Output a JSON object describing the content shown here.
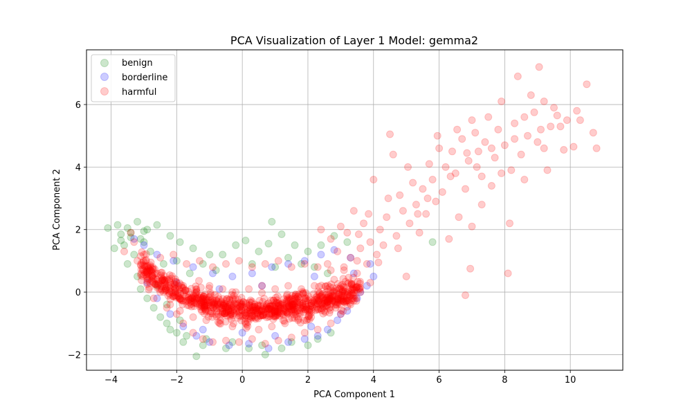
{
  "chart_data": {
    "type": "scatter",
    "title": "PCA Visualization of Layer 1 Model: gemma2",
    "xlabel": "PCA Component 1",
    "ylabel": "PCA Component 2",
    "xlim": [
      -4.75,
      11.6
    ],
    "ylim": [
      -2.5,
      7.75
    ],
    "xticks": [
      -4,
      -2,
      0,
      2,
      4,
      6,
      8,
      10
    ],
    "xtick_labels": [
      "−4",
      "−2",
      "0",
      "2",
      "4",
      "6",
      "8",
      "10"
    ],
    "yticks": [
      -2,
      0,
      2,
      4,
      6
    ],
    "ytick_labels": [
      "−2",
      "0",
      "2",
      "4",
      "6"
    ],
    "grid": true,
    "legend_position": "top-left",
    "series": [
      {
        "name": "benign",
        "color": "#008000",
        "opacity": 0.2,
        "points": [
          [
            -4.1,
            2.05
          ],
          [
            -3.8,
            2.15
          ],
          [
            -3.7,
            1.85
          ],
          [
            -3.5,
            2.05
          ],
          [
            -3.4,
            1.75
          ],
          [
            -3.2,
            2.25
          ],
          [
            -3.0,
            1.95
          ],
          [
            -3.6,
            1.5
          ],
          [
            -3.3,
            1.2
          ],
          [
            -3.5,
            0.9
          ],
          [
            -3.2,
            0.5
          ],
          [
            -3.1,
            0.1
          ],
          [
            -2.9,
            -0.2
          ],
          [
            -2.7,
            -0.5
          ],
          [
            -2.5,
            -0.8
          ],
          [
            -2.3,
            -1.0
          ],
          [
            -2.0,
            -1.3
          ],
          [
            -1.8,
            -1.6
          ],
          [
            -1.4,
            -2.05
          ],
          [
            -1.2,
            -1.7
          ],
          [
            -0.5,
            -1.8
          ],
          [
            0.2,
            -1.8
          ],
          [
            0.7,
            -2.0
          ],
          [
            1.5,
            -1.6
          ],
          [
            2.3,
            -1.5
          ],
          [
            -2.6,
            2.15
          ],
          [
            -2.2,
            1.8
          ],
          [
            -1.9,
            1.6
          ],
          [
            -1.5,
            1.4
          ],
          [
            -1.0,
            1.2
          ],
          [
            -0.6,
            1.2
          ],
          [
            -0.2,
            1.5
          ],
          [
            0.1,
            1.65
          ],
          [
            0.5,
            1.3
          ],
          [
            0.8,
            1.55
          ],
          [
            0.9,
            2.25
          ],
          [
            1.2,
            1.85
          ],
          [
            1.6,
            1.5
          ],
          [
            2.0,
            1.3
          ],
          [
            2.4,
            1.5
          ],
          [
            2.8,
            1.8
          ],
          [
            3.2,
            1.6
          ],
          [
            5.8,
            1.6
          ],
          [
            -3.0,
            1.6
          ],
          [
            -2.8,
            1.3
          ],
          [
            -2.4,
            0.9
          ],
          [
            -2.0,
            1.0
          ],
          [
            -1.6,
            0.6
          ],
          [
            -1.2,
            0.9
          ],
          [
            -0.8,
            0.7
          ],
          [
            0.3,
            0.9
          ],
          [
            1.0,
            0.8
          ],
          [
            1.4,
            1.1
          ],
          [
            1.8,
            0.9
          ],
          [
            2.2,
            0.8
          ],
          [
            2.6,
            0.6
          ],
          [
            -3.4,
            1.9
          ],
          [
            -3.1,
            1.7
          ],
          [
            -2.9,
            2.0
          ],
          [
            -3.7,
            1.65
          ],
          [
            -3.9,
            1.4
          ],
          [
            -2.6,
            0.2
          ],
          [
            -2.3,
            -0.4
          ],
          [
            -1.9,
            -0.9
          ],
          [
            -2.2,
            -1.2
          ],
          [
            -1.7,
            -1.4
          ],
          [
            -1.1,
            -1.5
          ],
          [
            -0.3,
            -1.6
          ],
          [
            0.6,
            -1.7
          ],
          [
            1.2,
            -1.8
          ],
          [
            2.0,
            -1.7
          ],
          [
            2.7,
            -1.3
          ]
        ]
      },
      {
        "name": "borderline",
        "color": "#0000ff",
        "opacity": 0.2,
        "points": [
          [
            -2.9,
            0.3
          ],
          [
            -2.6,
            -0.2
          ],
          [
            -2.2,
            -0.7
          ],
          [
            -1.8,
            -1.1
          ],
          [
            -1.4,
            -1.4
          ],
          [
            -1.0,
            -1.6
          ],
          [
            -0.4,
            -1.7
          ],
          [
            0.2,
            -1.65
          ],
          [
            0.8,
            -1.8
          ],
          [
            1.4,
            -1.6
          ],
          [
            1.9,
            -1.5
          ],
          [
            2.3,
            -1.4
          ],
          [
            2.6,
            -1.2
          ],
          [
            2.9,
            -0.9
          ],
          [
            3.2,
            -0.6
          ],
          [
            3.5,
            -0.2
          ],
          [
            3.8,
            0.2
          ],
          [
            4.0,
            0.5
          ],
          [
            3.9,
            0.9
          ],
          [
            3.3,
            1.1
          ],
          [
            2.8,
            1.35
          ],
          [
            2.4,
            1.2
          ],
          [
            1.9,
            1.0
          ],
          [
            1.4,
            0.9
          ],
          [
            0.9,
            0.8
          ],
          [
            0.3,
            0.6
          ],
          [
            -0.3,
            0.5
          ],
          [
            -0.9,
            0.6
          ],
          [
            -1.5,
            0.8
          ],
          [
            -2.1,
            1.0
          ],
          [
            -2.6,
            1.2
          ],
          [
            -3.0,
            1.5
          ],
          [
            -3.3,
            1.7
          ],
          [
            -1.2,
            -1.2
          ],
          [
            0.0,
            -1.3
          ],
          [
            1.0,
            -1.4
          ],
          [
            2.1,
            -1.1
          ],
          [
            3.0,
            -0.7
          ],
          [
            3.6,
            0.0
          ],
          [
            3.4,
            0.6
          ],
          [
            2.2,
            0.5
          ],
          [
            0.6,
            0.2
          ],
          [
            -0.7,
            0.1
          ],
          [
            -2.0,
            0.3
          ]
        ]
      },
      {
        "name": "harmful",
        "color": "#ff0000",
        "opacity": 0.2,
        "points": [
          [
            10.5,
            6.65
          ],
          [
            10.8,
            4.6
          ],
          [
            10.7,
            5.1
          ],
          [
            10.2,
            5.8
          ],
          [
            10.1,
            4.65
          ],
          [
            9.9,
            5.5
          ],
          [
            9.8,
            4.55
          ],
          [
            9.6,
            5.65
          ],
          [
            9.5,
            5.9
          ],
          [
            9.4,
            5.3
          ],
          [
            9.3,
            3.9
          ],
          [
            9.2,
            6.1
          ],
          [
            9.1,
            5.2
          ],
          [
            9.05,
            7.2
          ],
          [
            9.0,
            4.8
          ],
          [
            8.9,
            5.75
          ],
          [
            8.8,
            6.3
          ],
          [
            8.7,
            5.0
          ],
          [
            8.6,
            3.6
          ],
          [
            8.5,
            4.4
          ],
          [
            8.4,
            6.9
          ],
          [
            8.3,
            5.4
          ],
          [
            8.2,
            3.9
          ],
          [
            8.15,
            2.2
          ],
          [
            8.1,
            0.6
          ],
          [
            8.0,
            4.7
          ],
          [
            7.9,
            6.1
          ],
          [
            7.8,
            5.2
          ],
          [
            7.7,
            4.3
          ],
          [
            7.6,
            3.4
          ],
          [
            7.5,
            5.6
          ],
          [
            7.4,
            4.8
          ],
          [
            7.3,
            3.7
          ],
          [
            7.2,
            4.5
          ],
          [
            7.1,
            5.1
          ],
          [
            7.0,
            2.1
          ],
          [
            6.9,
            4.2
          ],
          [
            6.8,
            3.3
          ],
          [
            6.7,
            4.9
          ],
          [
            6.6,
            2.4
          ],
          [
            6.5,
            3.8
          ],
          [
            6.4,
            4.5
          ],
          [
            6.3,
            1.7
          ],
          [
            6.2,
            4.0
          ],
          [
            6.1,
            3.2
          ],
          [
            6.0,
            4.6
          ],
          [
            5.9,
            2.9
          ],
          [
            5.8,
            3.6
          ],
          [
            5.7,
            4.1
          ],
          [
            5.6,
            2.5
          ],
          [
            5.5,
            3.3
          ],
          [
            5.4,
            1.9
          ],
          [
            5.3,
            2.8
          ],
          [
            5.2,
            3.5
          ],
          [
            5.1,
            2.2
          ],
          [
            5.0,
            0.5
          ],
          [
            4.9,
            2.6
          ],
          [
            4.8,
            3.1
          ],
          [
            4.7,
            1.8
          ],
          [
            4.6,
            4.4
          ],
          [
            4.5,
            5.05
          ],
          [
            4.4,
            2.4
          ],
          [
            4.3,
            1.5
          ],
          [
            4.2,
            2.0
          ],
          [
            4.1,
            1.2
          ],
          [
            4.0,
            3.6
          ],
          [
            3.9,
            1.6
          ],
          [
            3.8,
            0.9
          ],
          [
            3.7,
            2.2
          ],
          [
            3.6,
            1.4
          ],
          [
            3.5,
            0.6
          ],
          [
            3.4,
            2.6
          ],
          [
            3.3,
            1.1
          ],
          [
            3.2,
            1.9
          ],
          [
            3.1,
            0.7
          ],
          [
            3.0,
            2.1
          ],
          [
            2.9,
            1.3
          ],
          [
            2.8,
            0.4
          ],
          [
            2.7,
            1.7
          ],
          [
            2.4,
            2.0
          ],
          [
            2.6,
            0.9
          ],
          [
            6.8,
            -0.1
          ],
          [
            6.95,
            0.75
          ],
          [
            7.3,
            2.8
          ],
          [
            7.6,
            4.6
          ],
          [
            7.9,
            3.8
          ],
          [
            8.3,
            4.9
          ],
          [
            8.6,
            5.6
          ],
          [
            9.2,
            4.6
          ],
          [
            9.7,
            5.3
          ],
          [
            10.3,
            5.5
          ],
          [
            7.0,
            5.5
          ],
          [
            7.15,
            4.0
          ],
          [
            6.85,
            4.45
          ],
          [
            6.55,
            5.2
          ],
          [
            6.35,
            3.7
          ],
          [
            5.95,
            5.0
          ],
          [
            5.65,
            3.0
          ],
          [
            5.35,
            2.5
          ],
          [
            5.05,
            4.0
          ],
          [
            4.75,
            1.4
          ],
          [
            4.45,
            3.0
          ],
          [
            4.15,
            0.95
          ],
          [
            3.85,
            2.5
          ],
          [
            3.55,
            1.85
          ],
          [
            3.25,
            0.3
          ],
          [
            -3.3,
            1.6
          ],
          [
            -3.0,
            1.2
          ],
          [
            -2.8,
            0.8
          ],
          [
            -2.6,
            0.4
          ],
          [
            -2.4,
            0.0
          ],
          [
            -2.2,
            -0.4
          ],
          [
            -2.0,
            -0.7
          ],
          [
            -1.8,
            -1.0
          ],
          [
            -1.5,
            -1.3
          ],
          [
            -1.2,
            -1.5
          ],
          [
            -0.9,
            -1.6
          ],
          [
            -0.5,
            -1.55
          ],
          [
            -0.1,
            -1.6
          ],
          [
            0.3,
            -1.5
          ],
          [
            0.7,
            -1.65
          ],
          [
            1.1,
            -1.55
          ],
          [
            1.5,
            -1.45
          ],
          [
            1.9,
            -1.3
          ],
          [
            2.3,
            -1.2
          ],
          [
            2.7,
            -1.0
          ],
          [
            3.0,
            -0.7
          ],
          [
            3.3,
            -0.4
          ],
          [
            3.6,
            0.0
          ],
          [
            3.9,
            0.3
          ],
          [
            -3.4,
            1.9
          ],
          [
            -3.6,
            1.3
          ],
          [
            -3.2,
            1.0
          ],
          [
            -2.9,
            0.6
          ],
          [
            -2.5,
            1.1
          ],
          [
            -2.1,
            1.2
          ],
          [
            -1.7,
            0.9
          ],
          [
            -1.3,
            1.0
          ],
          [
            -0.9,
            0.8
          ],
          [
            -0.5,
            0.9
          ],
          [
            -0.1,
            1.0
          ],
          [
            0.3,
            0.8
          ],
          [
            0.7,
            0.9
          ],
          [
            1.1,
            1.0
          ],
          [
            1.5,
            0.8
          ],
          [
            1.9,
            0.9
          ],
          [
            2.3,
            0.8
          ],
          [
            2.7,
            0.7
          ],
          [
            3.1,
            0.8
          ],
          [
            3.5,
            1.0
          ],
          [
            -2.7,
            -0.2
          ],
          [
            -2.3,
            -0.5
          ],
          [
            -1.9,
            -0.6
          ],
          [
            -1.5,
            -0.8
          ],
          [
            -1.1,
            -0.9
          ],
          [
            -0.7,
            -1.0
          ],
          [
            -0.3,
            -1.1
          ],
          [
            0.1,
            -1.0
          ],
          [
            0.5,
            -1.2
          ],
          [
            0.9,
            -1.1
          ],
          [
            1.3,
            -1.0
          ],
          [
            1.7,
            -0.9
          ],
          [
            2.1,
            -0.8
          ],
          [
            2.5,
            -0.6
          ],
          [
            2.9,
            -0.4
          ],
          [
            3.3,
            -0.1
          ],
          [
            -2.6,
            0.6
          ],
          [
            -2.2,
            0.3
          ],
          [
            -1.8,
            0.2
          ],
          [
            -1.4,
            0.1
          ],
          [
            -1.0,
            0.2
          ],
          [
            -0.6,
            0.1
          ],
          [
            -0.2,
            0.0
          ],
          [
            0.2,
            0.1
          ],
          [
            0.6,
            0.2
          ],
          [
            1.0,
            0.1
          ],
          [
            1.4,
            0.2
          ],
          [
            1.8,
            0.1
          ],
          [
            2.2,
            0.2
          ],
          [
            2.6,
            0.1
          ],
          [
            3.0,
            0.2
          ]
        ]
      }
    ],
    "dense_regions": [
      {
        "series": "harmful",
        "x_from": -3.1,
        "x_to": 3.6,
        "y_center": -0.6,
        "y_spread": 1.25,
        "count": 900
      }
    ]
  }
}
